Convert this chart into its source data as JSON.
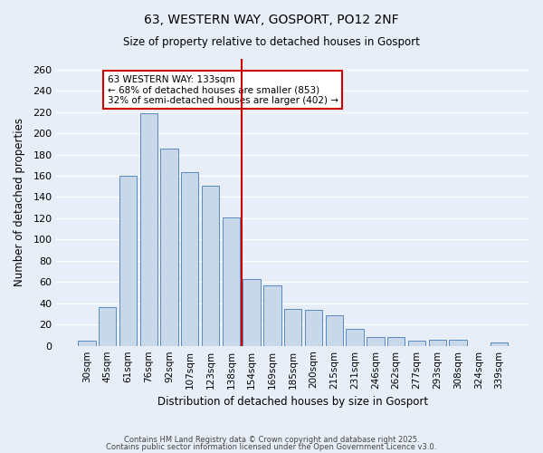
{
  "title": "63, WESTERN WAY, GOSPORT, PO12 2NF",
  "subtitle": "Size of property relative to detached houses in Gosport",
  "xlabel": "Distribution of detached houses by size in Gosport",
  "ylabel": "Number of detached properties",
  "bar_color": "#c8d8e8",
  "bar_edge_color": "#5a8abf",
  "background_color": "#e8eef8",
  "grid_color": "#ffffff",
  "categories": [
    "30sqm",
    "45sqm",
    "61sqm",
    "76sqm",
    "92sqm",
    "107sqm",
    "123sqm",
    "138sqm",
    "154sqm",
    "169sqm",
    "185sqm",
    "200sqm",
    "215sqm",
    "231sqm",
    "246sqm",
    "262sqm",
    "277sqm",
    "293sqm",
    "308sqm",
    "324sqm",
    "339sqm"
  ],
  "values": [
    5,
    36,
    160,
    219,
    186,
    163,
    151,
    121,
    63,
    57,
    35,
    34,
    29,
    16,
    8,
    8,
    5,
    6,
    6,
    0,
    3
  ],
  "vline_x": 8.5,
  "vline_color": "#cc0000",
  "annotation_title": "63 WESTERN WAY: 133sqm",
  "annotation_line1": "← 68% of detached houses are smaller (853)",
  "annotation_line2": "32% of semi-detached houses are larger (402) →",
  "ylim": [
    0,
    270
  ],
  "yticks": [
    0,
    20,
    40,
    60,
    80,
    100,
    120,
    140,
    160,
    180,
    200,
    220,
    240,
    260
  ],
  "footer1": "Contains HM Land Registry data © Crown copyright and database right 2025.",
  "footer2": "Contains public sector information licensed under the Open Government Licence v3.0."
}
